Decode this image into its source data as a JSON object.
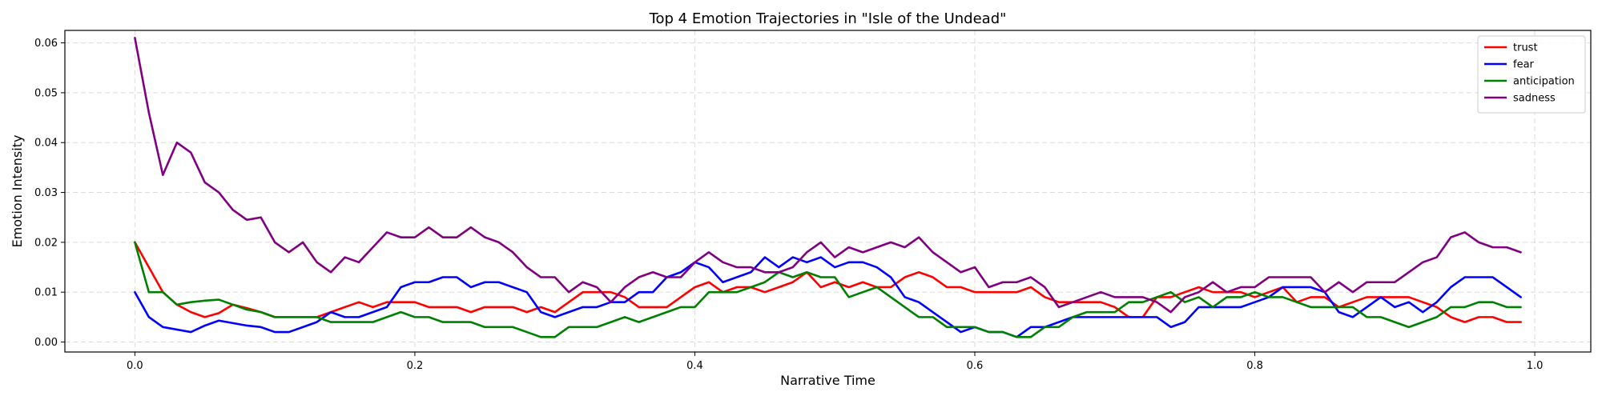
{
  "chart_data": {
    "type": "line",
    "title": "Top 4 Emotion Trajectories in \"Isle of the Undead\"",
    "xlabel": "Narrative Time",
    "ylabel": "Emotion Intensity",
    "xlim": [
      -0.05,
      1.04
    ],
    "ylim": [
      -0.002,
      0.0625
    ],
    "xticks": [
      0.0,
      0.2,
      0.4,
      0.6,
      0.8,
      1.0
    ],
    "xtick_labels": [
      "0.0",
      "0.2",
      "0.4",
      "0.6",
      "0.8",
      "1.0"
    ],
    "yticks": [
      0.0,
      0.01,
      0.02,
      0.03,
      0.04,
      0.05,
      0.06
    ],
    "ytick_labels": [
      "0.00",
      "0.01",
      "0.02",
      "0.03",
      "0.04",
      "0.05",
      "0.06"
    ],
    "grid": true,
    "legend_position": "top-right",
    "x": [
      0.0,
      0.01,
      0.02,
      0.03,
      0.04,
      0.05,
      0.06,
      0.07,
      0.08,
      0.09,
      0.1,
      0.11,
      0.12,
      0.13,
      0.14,
      0.15,
      0.16,
      0.17,
      0.18,
      0.19,
      0.2,
      0.21,
      0.22,
      0.23,
      0.24,
      0.25,
      0.26,
      0.27,
      0.28,
      0.29,
      0.3,
      0.31,
      0.32,
      0.33,
      0.34,
      0.35,
      0.36,
      0.37,
      0.38,
      0.39,
      0.4,
      0.41,
      0.42,
      0.43,
      0.44,
      0.45,
      0.46,
      0.47,
      0.48,
      0.49,
      0.5,
      0.51,
      0.52,
      0.53,
      0.54,
      0.55,
      0.56,
      0.57,
      0.58,
      0.59,
      0.6,
      0.61,
      0.62,
      0.63,
      0.64,
      0.65,
      0.66,
      0.67,
      0.68,
      0.69,
      0.7,
      0.71,
      0.72,
      0.73,
      0.74,
      0.75,
      0.76,
      0.77,
      0.78,
      0.79,
      0.8,
      0.81,
      0.82,
      0.83,
      0.84,
      0.85,
      0.86,
      0.87,
      0.88,
      0.89,
      0.9,
      0.91,
      0.92,
      0.93,
      0.94,
      0.95,
      0.96,
      0.97,
      0.98,
      0.99
    ],
    "series": [
      {
        "name": "trust",
        "color": "#ff0000",
        "values": [
          0.02,
          0.015,
          0.01,
          0.0075,
          0.006,
          0.005,
          0.0058,
          0.0075,
          0.0068,
          0.006,
          0.005,
          0.005,
          0.005,
          0.005,
          0.006,
          0.007,
          0.008,
          0.007,
          0.008,
          0.008,
          0.008,
          0.007,
          0.007,
          0.007,
          0.006,
          0.007,
          0.007,
          0.007,
          0.006,
          0.007,
          0.006,
          0.008,
          0.01,
          0.01,
          0.01,
          0.009,
          0.007,
          0.007,
          0.007,
          0.009,
          0.011,
          0.012,
          0.01,
          0.011,
          0.011,
          0.01,
          0.011,
          0.012,
          0.014,
          0.011,
          0.012,
          0.011,
          0.012,
          0.011,
          0.011,
          0.013,
          0.014,
          0.013,
          0.011,
          0.011,
          0.01,
          0.01,
          0.01,
          0.01,
          0.011,
          0.009,
          0.008,
          0.008,
          0.008,
          0.008,
          0.007,
          0.005,
          0.005,
          0.009,
          0.009,
          0.01,
          0.011,
          0.01,
          0.01,
          0.01,
          0.009,
          0.01,
          0.011,
          0.008,
          0.009,
          0.009,
          0.007,
          0.008,
          0.009,
          0.009,
          0.009,
          0.009,
          0.008,
          0.007,
          0.005,
          0.004,
          0.005,
          0.005,
          0.004,
          0.004
        ]
      },
      {
        "name": "fear",
        "color": "#0000ff",
        "values": [
          0.01,
          0.005,
          0.003,
          0.0025,
          0.002,
          0.0033,
          0.0043,
          0.0038,
          0.0033,
          0.003,
          0.002,
          0.002,
          0.003,
          0.004,
          0.006,
          0.005,
          0.005,
          0.006,
          0.007,
          0.011,
          0.012,
          0.012,
          0.013,
          0.013,
          0.011,
          0.012,
          0.012,
          0.011,
          0.01,
          0.006,
          0.005,
          0.006,
          0.007,
          0.007,
          0.008,
          0.008,
          0.01,
          0.01,
          0.013,
          0.014,
          0.016,
          0.015,
          0.012,
          0.013,
          0.014,
          0.017,
          0.015,
          0.017,
          0.016,
          0.017,
          0.015,
          0.016,
          0.016,
          0.015,
          0.013,
          0.009,
          0.008,
          0.006,
          0.004,
          0.002,
          0.003,
          0.002,
          0.002,
          0.001,
          0.003,
          0.003,
          0.004,
          0.005,
          0.005,
          0.005,
          0.005,
          0.005,
          0.005,
          0.005,
          0.003,
          0.004,
          0.007,
          0.007,
          0.007,
          0.007,
          0.008,
          0.009,
          0.011,
          0.011,
          0.011,
          0.01,
          0.006,
          0.005,
          0.007,
          0.009,
          0.007,
          0.008,
          0.006,
          0.008,
          0.011,
          0.013,
          0.013,
          0.013,
          0.011,
          0.009
        ]
      },
      {
        "name": "anticipation",
        "color": "#008000",
        "values": [
          0.02,
          0.01,
          0.01,
          0.0075,
          0.008,
          0.0083,
          0.0085,
          0.0075,
          0.0065,
          0.006,
          0.005,
          0.005,
          0.005,
          0.005,
          0.004,
          0.004,
          0.004,
          0.004,
          0.005,
          0.006,
          0.005,
          0.005,
          0.004,
          0.004,
          0.004,
          0.003,
          0.003,
          0.003,
          0.002,
          0.001,
          0.001,
          0.003,
          0.003,
          0.003,
          0.004,
          0.005,
          0.004,
          0.005,
          0.006,
          0.007,
          0.007,
          0.01,
          0.01,
          0.01,
          0.011,
          0.012,
          0.014,
          0.013,
          0.014,
          0.013,
          0.013,
          0.009,
          0.01,
          0.011,
          0.009,
          0.007,
          0.005,
          0.005,
          0.003,
          0.003,
          0.003,
          0.002,
          0.002,
          0.001,
          0.001,
          0.003,
          0.003,
          0.005,
          0.006,
          0.006,
          0.006,
          0.008,
          0.008,
          0.009,
          0.01,
          0.008,
          0.009,
          0.007,
          0.009,
          0.009,
          0.01,
          0.009,
          0.009,
          0.008,
          0.007,
          0.007,
          0.007,
          0.007,
          0.005,
          0.005,
          0.004,
          0.003,
          0.004,
          0.005,
          0.007,
          0.007,
          0.008,
          0.008,
          0.007,
          0.007
        ]
      },
      {
        "name": "sadness",
        "color": "#800080",
        "values": [
          0.061,
          0.046,
          0.0335,
          0.04,
          0.038,
          0.032,
          0.03,
          0.0265,
          0.0245,
          0.025,
          0.02,
          0.018,
          0.02,
          0.016,
          0.014,
          0.017,
          0.016,
          0.019,
          0.022,
          0.021,
          0.021,
          0.023,
          0.021,
          0.021,
          0.023,
          0.021,
          0.02,
          0.018,
          0.015,
          0.013,
          0.013,
          0.01,
          0.012,
          0.011,
          0.008,
          0.011,
          0.013,
          0.014,
          0.013,
          0.013,
          0.016,
          0.018,
          0.016,
          0.015,
          0.015,
          0.014,
          0.014,
          0.015,
          0.018,
          0.02,
          0.017,
          0.019,
          0.018,
          0.019,
          0.02,
          0.019,
          0.021,
          0.018,
          0.016,
          0.014,
          0.015,
          0.011,
          0.012,
          0.012,
          0.013,
          0.011,
          0.007,
          0.008,
          0.009,
          0.01,
          0.009,
          0.009,
          0.009,
          0.008,
          0.006,
          0.009,
          0.01,
          0.012,
          0.01,
          0.011,
          0.011,
          0.013,
          0.013,
          0.013,
          0.013,
          0.01,
          0.012,
          0.01,
          0.012,
          0.012,
          0.012,
          0.014,
          0.016,
          0.017,
          0.021,
          0.022,
          0.02,
          0.019,
          0.019,
          0.018
        ]
      }
    ]
  }
}
